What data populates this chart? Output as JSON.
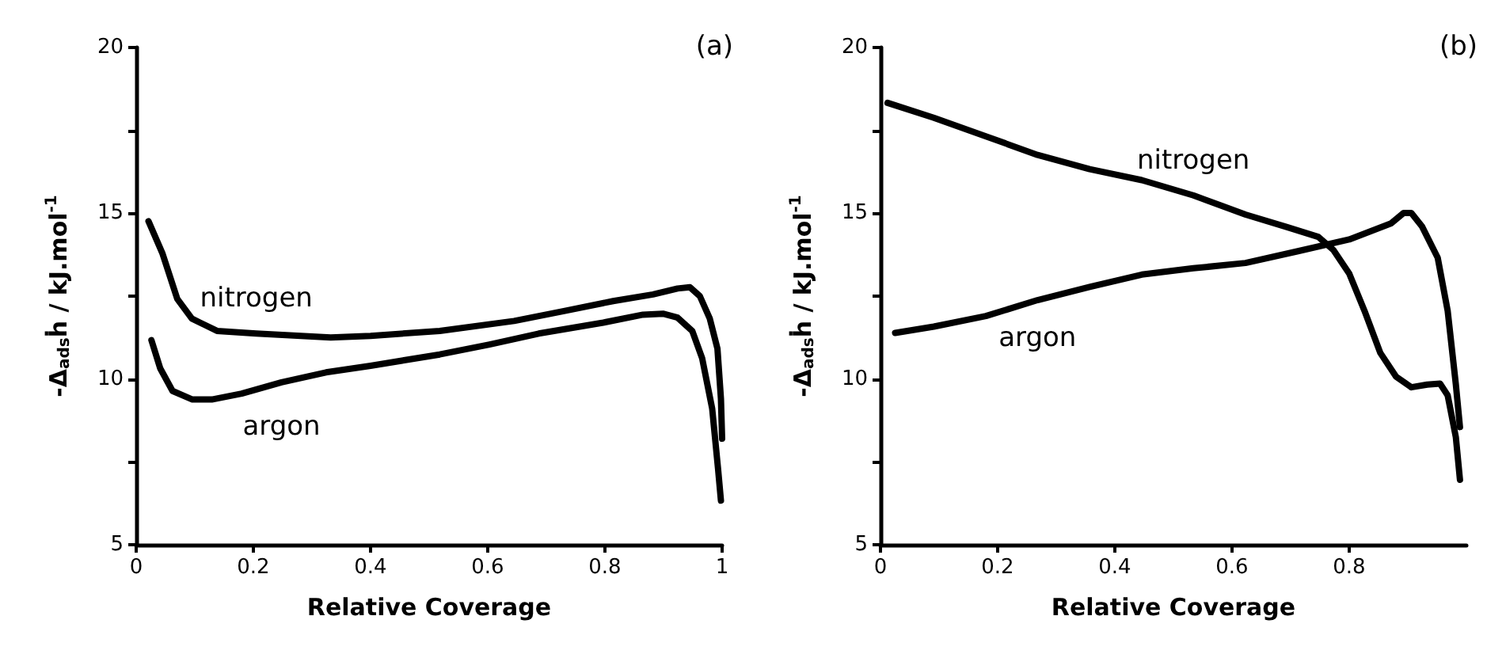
{
  "chart_data": [
    {
      "type": "line",
      "title": "(a)",
      "xlabel": "Relative Coverage",
      "ylabel": "-Δ$_{ads}$ḣ / kJ.mol$^{-1}$",
      "xlim": [
        0,
        1
      ],
      "xticks": [
        0,
        0.2,
        0.4,
        0.6,
        0.8,
        1
      ],
      "ylim": [
        5,
        20
      ],
      "yticks": [
        5,
        {
          "value": 7.5,
          "label": null
        },
        10,
        {
          "value": 12.5,
          "label": null
        },
        15,
        {
          "value": 17.5,
          "label": null
        },
        20
      ],
      "grid": false,
      "legend": false,
      "marker": "none",
      "line_style": "solid",
      "series": [
        {
          "name": "nitrogen",
          "color": "#000000",
          "x": [
            0.021,
            0.045,
            0.07,
            0.095,
            0.138,
            0.205,
            0.332,
            0.4,
            0.518,
            0.645,
            0.73,
            0.814,
            0.882,
            0.924,
            0.945,
            0.962,
            0.979,
            0.992,
            0.998,
            1.0
          ],
          "values": [
            14.76,
            13.78,
            12.42,
            11.82,
            11.45,
            11.37,
            11.25,
            11.3,
            11.45,
            11.75,
            12.05,
            12.35,
            12.55,
            12.73,
            12.77,
            12.5,
            11.82,
            10.92,
            9.4,
            8.2
          ]
        },
        {
          "name": "argon",
          "color": "#000000",
          "x": [
            0.026,
            0.041,
            0.062,
            0.096,
            0.129,
            0.18,
            0.248,
            0.324,
            0.4,
            0.518,
            0.603,
            0.687,
            0.797,
            0.865,
            0.899,
            0.924,
            0.949,
            0.966,
            0.983,
            0.993,
            0.998
          ],
          "values": [
            11.17,
            10.32,
            9.64,
            9.38,
            9.38,
            9.56,
            9.9,
            10.2,
            10.4,
            10.74,
            11.04,
            11.37,
            11.7,
            11.94,
            11.97,
            11.85,
            11.45,
            10.62,
            9.11,
            7.3,
            6.33
          ]
        }
      ]
    },
    {
      "type": "line",
      "title": "(b)",
      "xlabel": "Relative Coverage",
      "ylabel": "-Δ$_{ads}$ḣ / kJ.mol$^{-1}$",
      "xlim": [
        0,
        1
      ],
      "xticks": [
        0,
        0.2,
        0.4,
        0.6,
        0.8
      ],
      "ylim": [
        5,
        20
      ],
      "yticks": [
        5,
        {
          "value": 7.5,
          "label": null
        },
        10,
        {
          "value": 12.5,
          "label": null
        },
        15,
        {
          "value": 17.5,
          "label": null
        },
        20
      ],
      "grid": false,
      "legend": false,
      "marker": "none",
      "line_style": "solid",
      "series": [
        {
          "name": "nitrogen",
          "color": "#000000",
          "x": [
            0.012,
            0.091,
            0.18,
            0.268,
            0.357,
            0.446,
            0.534,
            0.623,
            0.694,
            0.747,
            0.773,
            0.8,
            0.826,
            0.853,
            0.88,
            0.906,
            0.933,
            0.955,
            0.968,
            0.982,
            0.989
          ],
          "values": [
            18.33,
            17.88,
            17.32,
            16.76,
            16.33,
            16.0,
            15.54,
            14.96,
            14.58,
            14.29,
            13.89,
            13.18,
            12.06,
            10.79,
            10.07,
            9.75,
            9.83,
            9.86,
            9.51,
            8.24,
            6.96
          ]
        },
        {
          "name": "argon",
          "color": "#000000",
          "x": [
            0.025,
            0.091,
            0.18,
            0.268,
            0.357,
            0.446,
            0.534,
            0.623,
            0.711,
            0.8,
            0.871,
            0.893,
            0.906,
            0.924,
            0.951,
            0.968,
            0.982,
            0.989
          ],
          "values": [
            11.39,
            11.58,
            11.9,
            12.38,
            12.78,
            13.15,
            13.34,
            13.5,
            13.85,
            14.21,
            14.69,
            15.01,
            15.01,
            14.61,
            13.66,
            12.06,
            9.83,
            8.55
          ]
        }
      ]
    }
  ]
}
